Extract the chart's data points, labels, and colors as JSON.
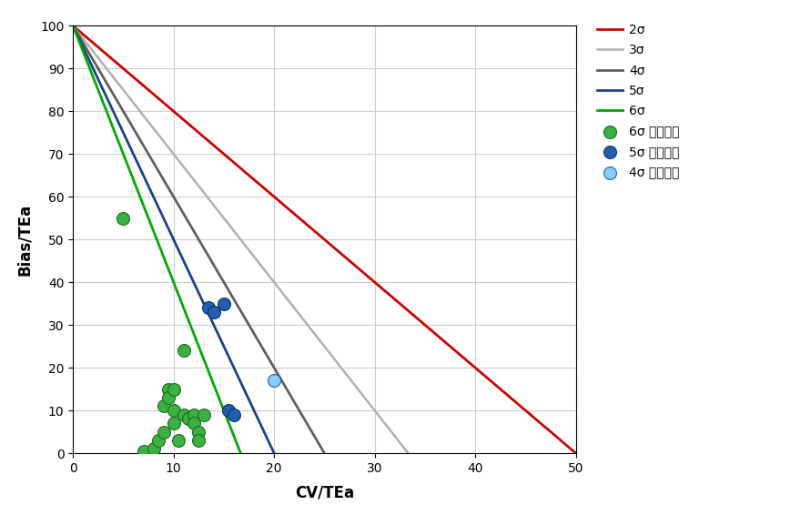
{
  "title": "",
  "xlabel": "CV/TEa",
  "ylabel": "Bias/TEa",
  "xlim": [
    0,
    50
  ],
  "ylim": [
    0,
    100
  ],
  "xticks": [
    0,
    10,
    20,
    30,
    40,
    50
  ],
  "yticks": [
    0,
    10,
    20,
    30,
    40,
    50,
    60,
    70,
    80,
    90,
    100
  ],
  "sigma_lines": [
    {
      "sigma": 2,
      "x_end": 50.0,
      "color": "#cc0000",
      "linewidth": 2.0,
      "label": "2σ"
    },
    {
      "sigma": 3,
      "x_end": 33.33,
      "color": "#b0b0b0",
      "linewidth": 1.8,
      "label": "3σ"
    },
    {
      "sigma": 4,
      "x_end": 25.0,
      "color": "#606060",
      "linewidth": 2.0,
      "label": "4σ"
    },
    {
      "sigma": 5,
      "x_end": 20.0,
      "color": "#1f3f8f",
      "linewidth": 2.0,
      "label": "5σ"
    },
    {
      "sigma": 6,
      "x_end": 16.67,
      "color": "#00aa00",
      "linewidth": 2.0,
      "label": "6σ"
    }
  ],
  "scatter_6sigma": {
    "color": "#3cb043",
    "edgecolor": "#1a6b1a",
    "label": "6σ 水平项目",
    "size": 100,
    "points": [
      [
        5.0,
        55.0
      ],
      [
        7.0,
        0.5
      ],
      [
        8.0,
        1.0
      ],
      [
        8.5,
        3.0
      ],
      [
        9.0,
        11.0
      ],
      [
        9.0,
        5.0
      ],
      [
        9.5,
        15.0
      ],
      [
        9.5,
        13.0
      ],
      [
        10.0,
        15.0
      ],
      [
        10.0,
        10.0
      ],
      [
        10.0,
        7.0
      ],
      [
        10.5,
        3.0
      ],
      [
        11.0,
        24.0
      ],
      [
        11.0,
        9.0
      ],
      [
        11.5,
        8.0
      ],
      [
        12.0,
        9.0
      ],
      [
        12.0,
        7.0
      ],
      [
        12.5,
        5.0
      ],
      [
        12.5,
        3.0
      ],
      [
        13.0,
        9.0
      ]
    ]
  },
  "scatter_5sigma": {
    "color": "#2060b0",
    "edgecolor": "#0d2f5e",
    "label": "5σ 水平项目",
    "size": 100,
    "points": [
      [
        13.5,
        34.0
      ],
      [
        14.0,
        33.0
      ],
      [
        15.0,
        35.0
      ],
      [
        15.5,
        10.0
      ],
      [
        16.0,
        9.0
      ]
    ]
  },
  "scatter_4sigma": {
    "color": "#87cefa",
    "edgecolor": "#2060b0",
    "label": "4σ 水平项目",
    "size": 100,
    "points": [
      [
        20.0,
        17.0
      ]
    ]
  },
  "grid_color": "#cccccc",
  "background_color": "#ffffff",
  "legend_fontsize": 10,
  "axis_fontsize": 12,
  "tick_fontsize": 10
}
